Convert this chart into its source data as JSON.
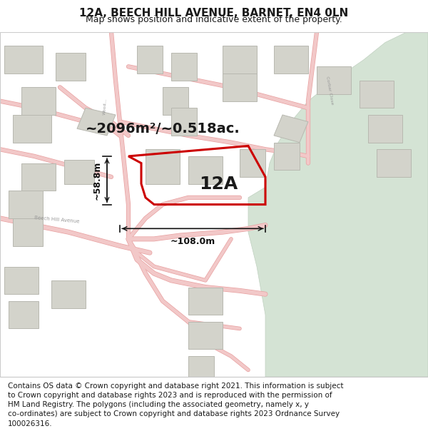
{
  "title": "12A, BEECH HILL AVENUE, BARNET, EN4 0LN",
  "subtitle": "Map shows position and indicative extent of the property.",
  "footer": "Contains OS data © Crown copyright and database right 2021. This information is subject\nto Crown copyright and database rights 2023 and is reproduced with the permission of\nHM Land Registry. The polygons (including the associated geometry, namely x, y\nco-ordinates) are subject to Crown copyright and database rights 2023 Ordnance Survey\n100026316.",
  "area_label": "~2096m²/~0.518ac.",
  "property_label": "12A",
  "width_label": "~108.0m",
  "height_label": "~58.8m",
  "map_bg": "#f7f6f1",
  "road_color": "#f2c8c8",
  "road_edge": "#e8a0a0",
  "building_color": "#d3d3cb",
  "building_outline": "#b8b8b0",
  "green_color": "#d4e3d4",
  "green_edge": "#c0d0c0",
  "highlight_color": "#cc0000",
  "text_color": "#1a1a1a",
  "dim_color": "#111111",
  "road_label_color": "#999999",
  "title_fontsize": 11,
  "subtitle_fontsize": 9,
  "footer_fontsize": 7.5,
  "area_fontsize": 14,
  "prop_label_fontsize": 18,
  "dim_fontsize": 9
}
